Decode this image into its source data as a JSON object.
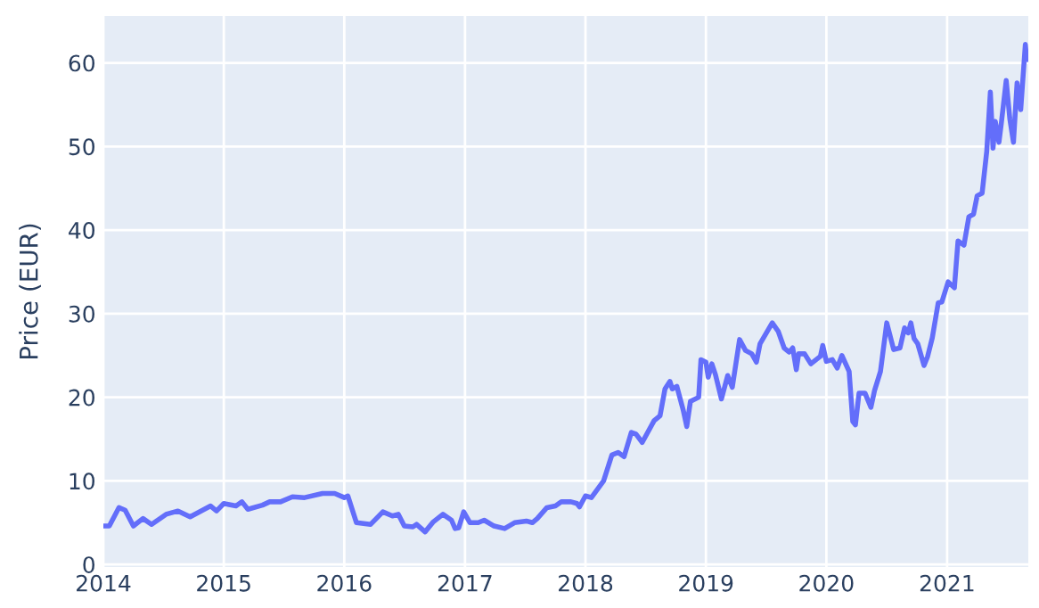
{
  "chart_data": {
    "type": "line",
    "ylabel": "Price (EUR)",
    "xlim": [
      "2014-01-01",
      "2021-09-04"
    ],
    "ylim": [
      -0.3,
      65.6
    ],
    "xticks": [
      {
        "value": "2014-01-01",
        "label": "2014"
      },
      {
        "value": "2015-01-01",
        "label": "2015"
      },
      {
        "value": "2016-01-01",
        "label": "2016"
      },
      {
        "value": "2017-01-01",
        "label": "2017"
      },
      {
        "value": "2018-01-01",
        "label": "2018"
      },
      {
        "value": "2019-01-01",
        "label": "2019"
      },
      {
        "value": "2020-01-01",
        "label": "2020"
      },
      {
        "value": "2021-01-01",
        "label": "2021"
      }
    ],
    "yticks": [
      0,
      10,
      20,
      30,
      40,
      50,
      60
    ],
    "grid": true,
    "marker": "none",
    "line_style": "solid",
    "x": [
      "2014-01-01",
      "2014-01-19",
      "2014-02-17",
      "2014-03-08",
      "2014-04-02",
      "2014-05-01",
      "2014-05-27",
      "2014-07-10",
      "2014-08-15",
      "2014-09-21",
      "2014-11-22",
      "2014-12-10",
      "2015-01-01",
      "2015-02-07",
      "2015-02-25",
      "2015-03-15",
      "2015-04-28",
      "2015-05-20",
      "2015-06-22",
      "2015-07-28",
      "2015-09-03",
      "2015-10-27",
      "2015-12-03",
      "2016-01-01",
      "2016-01-12",
      "2016-02-07",
      "2016-03-21",
      "2016-04-27",
      "2016-05-26",
      "2016-06-13",
      "2016-07-01",
      "2016-07-27",
      "2016-08-07",
      "2016-09-02",
      "2016-09-27",
      "2016-10-26",
      "2016-11-21",
      "2016-12-02",
      "2016-12-13",
      "2016-12-28",
      "2017-01-16",
      "2017-02-10",
      "2017-02-28",
      "2017-03-30",
      "2017-05-01",
      "2017-05-31",
      "2017-07-06",
      "2017-07-24",
      "2017-08-08",
      "2017-09-06",
      "2017-10-02",
      "2017-10-20",
      "2017-11-18",
      "2017-12-06",
      "2017-12-14",
      "2018-01-01",
      "2018-01-19",
      "2018-02-25",
      "2018-03-22",
      "2018-04-10",
      "2018-04-28",
      "2018-05-20",
      "2018-06-03",
      "2018-06-22",
      "2018-07-28",
      "2018-08-15",
      "2018-08-30",
      "2018-09-14",
      "2018-09-21",
      "2018-10-05",
      "2018-10-24",
      "2018-11-04",
      "2018-11-15",
      "2018-12-10",
      "2018-12-17",
      "2019-01-01",
      "2019-01-08",
      "2019-01-19",
      "2019-01-30",
      "2019-02-17",
      "2019-03-08",
      "2019-03-22",
      "2019-04-13",
      "2019-05-01",
      "2019-05-20",
      "2019-06-03",
      "2019-06-14",
      "2019-07-21",
      "2019-08-08",
      "2019-08-26",
      "2019-09-10",
      "2019-09-21",
      "2019-10-02",
      "2019-10-09",
      "2019-10-27",
      "2019-11-15",
      "2019-12-14",
      "2019-12-21",
      "2020-01-01",
      "2020-01-19",
      "2020-02-03",
      "2020-02-17",
      "2020-03-10",
      "2020-03-21",
      "2020-03-29",
      "2020-04-09",
      "2020-04-27",
      "2020-05-15",
      "2020-05-26",
      "2020-06-13",
      "2020-07-02",
      "2020-07-23",
      "2020-08-11",
      "2020-08-25",
      "2020-09-05",
      "2020-09-13",
      "2020-09-23",
      "2020-10-04",
      "2020-10-23",
      "2020-11-03",
      "2020-11-17",
      "2020-12-05",
      "2020-12-16",
      "2021-01-04",
      "2021-01-23",
      "2021-02-03",
      "2021-02-21",
      "2021-03-08",
      "2021-03-22",
      "2021-04-02",
      "2021-04-17",
      "2021-05-01",
      "2021-05-12",
      "2021-05-20",
      "2021-05-27",
      "2021-06-07",
      "2021-06-14",
      "2021-06-29",
      "2021-07-10",
      "2021-07-21",
      "2021-08-01",
      "2021-08-12",
      "2021-08-26",
      "2021-08-30"
    ],
    "series": [
      {
        "color": "#636efa",
        "values": [
          4.6,
          4.6,
          6.8,
          6.5,
          4.6,
          5.5,
          4.8,
          6.0,
          6.4,
          5.7,
          7.0,
          6.4,
          7.3,
          7.0,
          7.5,
          6.6,
          7.1,
          7.5,
          7.5,
          8.1,
          8.0,
          8.5,
          8.5,
          8.0,
          8.2,
          5.0,
          4.8,
          6.3,
          5.8,
          6.0,
          4.6,
          4.5,
          4.8,
          3.9,
          5.1,
          6.0,
          5.3,
          4.3,
          4.4,
          6.3,
          5.0,
          5.0,
          5.3,
          4.6,
          4.3,
          5.0,
          5.2,
          5.0,
          5.5,
          6.8,
          7.0,
          7.5,
          7.5,
          7.3,
          6.9,
          8.2,
          8.0,
          10.0,
          13.1,
          13.4,
          12.9,
          15.8,
          15.6,
          14.6,
          17.2,
          17.8,
          21.0,
          21.9,
          21.0,
          21.3,
          18.5,
          16.5,
          19.5,
          20.0,
          24.5,
          24.2,
          22.4,
          24.0,
          22.7,
          19.8,
          22.6,
          21.2,
          26.9,
          25.6,
          25.2,
          24.2,
          26.4,
          28.9,
          27.9,
          25.9,
          25.4,
          25.9,
          23.3,
          25.2,
          25.2,
          24.0,
          24.9,
          26.2,
          24.3,
          24.5,
          23.5,
          25.0,
          23.1,
          17.1,
          16.7,
          20.5,
          20.5,
          18.8,
          20.8,
          23.1,
          28.9,
          25.7,
          25.9,
          28.3,
          27.7,
          28.9,
          27.0,
          26.4,
          23.8,
          24.9,
          27.1,
          31.3,
          31.4,
          33.8,
          33.1,
          38.7,
          38.2,
          41.6,
          41.9,
          44.1,
          44.4,
          49.4,
          56.5,
          49.8,
          53.0,
          50.5,
          52.7,
          57.9,
          53.3,
          50.5,
          57.6,
          54.4,
          62.2,
          60.4
        ]
      }
    ]
  }
}
